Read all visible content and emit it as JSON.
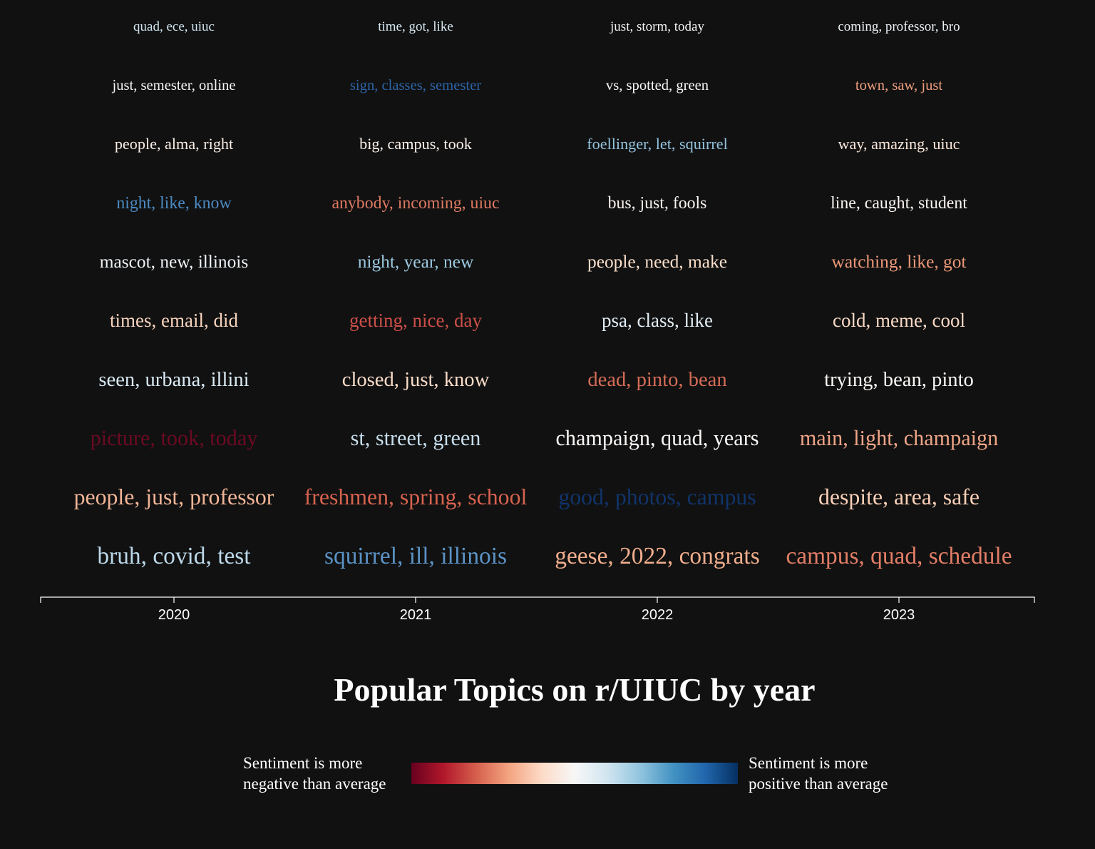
{
  "title": "Popular Topics on r/UIUC by year",
  "legend": {
    "negative_line1": "Sentiment is more",
    "negative_line2": "negative than average",
    "positive_line1": "Sentiment is more",
    "positive_line2": "positive than average",
    "colors": [
      "#67001f",
      "#b2182b",
      "#d6604d",
      "#f4a582",
      "#fddbc7",
      "#f7f7f7",
      "#d1e5f0",
      "#92c5de",
      "#4393c3",
      "#2166ac",
      "#053061"
    ]
  },
  "chart_data": {
    "type": "table",
    "title": "Popular Topics on r/UIUC by year",
    "x": [
      "2020",
      "2021",
      "2022",
      "2023"
    ],
    "columns": [
      {
        "year": "2020",
        "topics": [
          {
            "label": "quad, ece, uiuc",
            "color": "#d1e5f0"
          },
          {
            "label": "just, semester, online",
            "color": "#f4f4f4"
          },
          {
            "label": "people, alma, right",
            "color": "#fbeee6"
          },
          {
            "label": "night, like, know",
            "color": "#4d8cc4"
          },
          {
            "label": "mascot, new, illinois",
            "color": "#eef3f7"
          },
          {
            "label": "times, email, did",
            "color": "#f8d3bc"
          },
          {
            "label": "seen, urbana, illini",
            "color": "#d9e9f2"
          },
          {
            "label": "picture, took, today",
            "color": "#6b0a22"
          },
          {
            "label": "people, just, professor",
            "color": "#f2b597"
          },
          {
            "label": "bruh, covid, test",
            "color": "#bcd9ea"
          }
        ]
      },
      {
        "year": "2021",
        "topics": [
          {
            "label": "time, got, like",
            "color": "#d6e7f1"
          },
          {
            "label": "sign, classes, semester",
            "color": "#2d64a6"
          },
          {
            "label": "big, campus, took",
            "color": "#fbf2ec"
          },
          {
            "label": "anybody, incoming, uiuc",
            "color": "#de7a62"
          },
          {
            "label": "night, year, new",
            "color": "#9cc8e0"
          },
          {
            "label": "getting, nice, day",
            "color": "#cc4f48"
          },
          {
            "label": "closed, just, know",
            "color": "#fbdcc8"
          },
          {
            "label": "st, street, green",
            "color": "#c7deec"
          },
          {
            "label": "freshmen, spring, school",
            "color": "#d7634f"
          },
          {
            "label": "squirrel, ill, illinois",
            "color": "#5b93c6"
          }
        ]
      },
      {
        "year": "2022",
        "topics": [
          {
            "label": "just, storm, today",
            "color": "#f4f4f4"
          },
          {
            "label": "vs, spotted, green",
            "color": "#f7f7f7"
          },
          {
            "label": "foellinger, let, squirrel",
            "color": "#93c3df"
          },
          {
            "label": "bus, just, fools",
            "color": "#fbf4f0"
          },
          {
            "label": "people, need, make",
            "color": "#fbdfcb"
          },
          {
            "label": "psa, class, like",
            "color": "#e2eef5"
          },
          {
            "label": "dead, pinto, bean",
            "color": "#d46c57"
          },
          {
            "label": "champaign, quad, years",
            "color": "#fbf8f6"
          },
          {
            "label": "good, photos, campus",
            "color": "#10346a"
          },
          {
            "label": "geese, 2022, congrats",
            "color": "#f1ae8d"
          }
        ]
      },
      {
        "year": "2023",
        "topics": [
          {
            "label": "coming, professor, bro",
            "color": "#edf3f7"
          },
          {
            "label": "town, saw, just",
            "color": "#ee9e7f"
          },
          {
            "label": "way, amazing, uiuc",
            "color": "#fce8dc"
          },
          {
            "label": "line, caught, student",
            "color": "#fcf6f3"
          },
          {
            "label": "watching, like, got",
            "color": "#ec9878"
          },
          {
            "label": "cold, meme, cool",
            "color": "#fbdac5"
          },
          {
            "label": "trying, bean, pinto",
            "color": "#fbf8f6"
          },
          {
            "label": "main, light, champaign",
            "color": "#efa586"
          },
          {
            "label": "despite, area, safe",
            "color": "#fad0b7"
          },
          {
            "label": "campus, quad, schedule",
            "color": "#e27e66"
          }
        ]
      }
    ]
  }
}
